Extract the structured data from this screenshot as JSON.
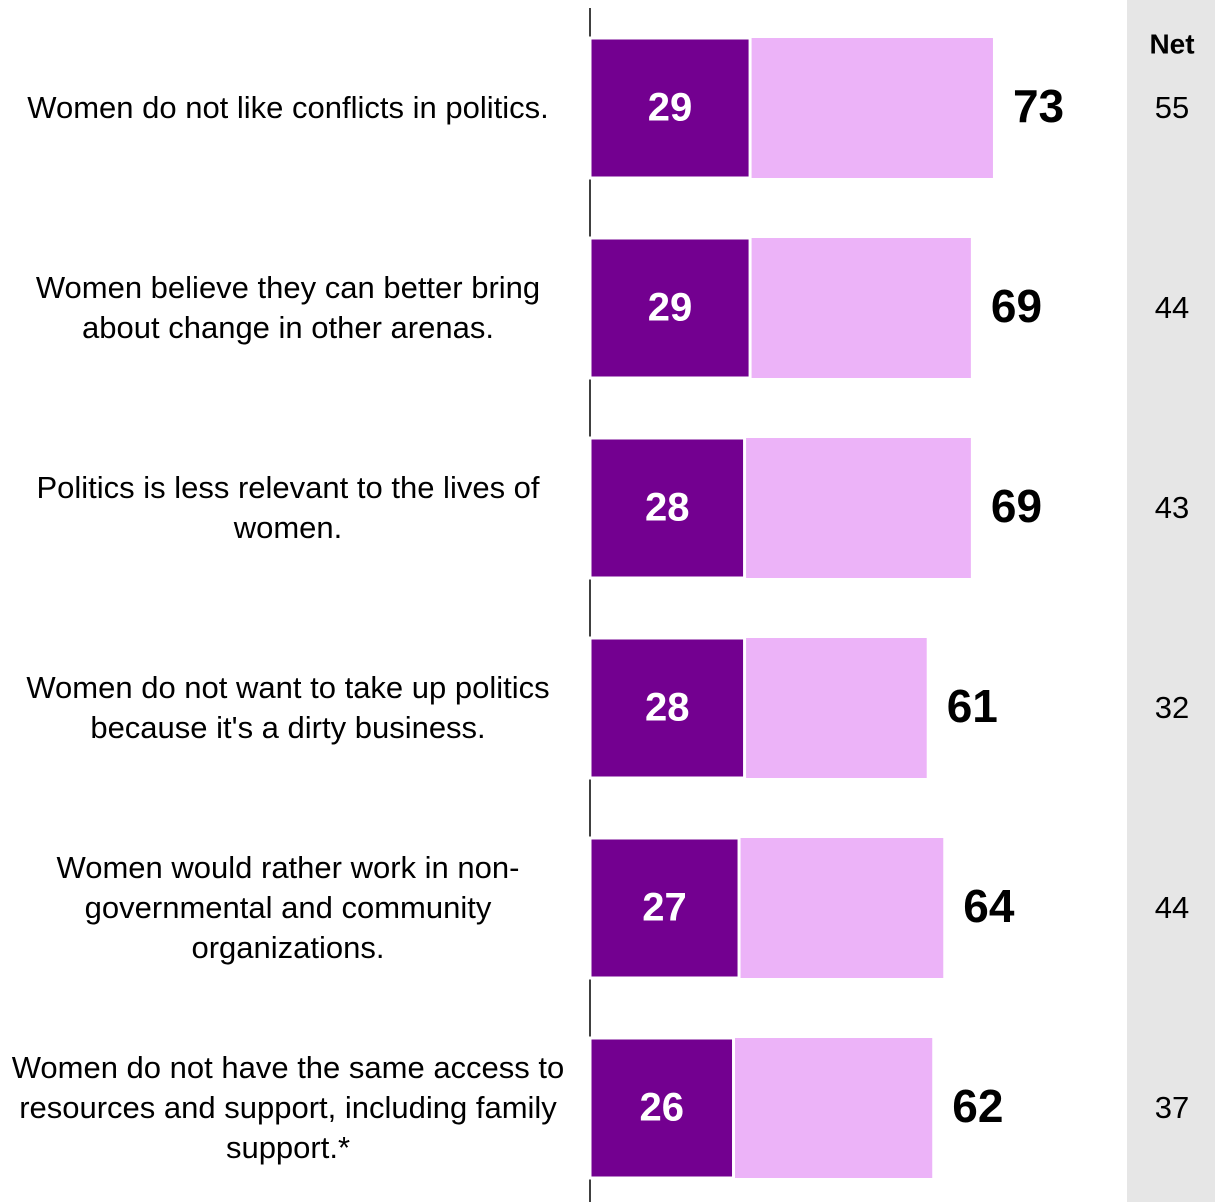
{
  "chart_data": {
    "type": "bar",
    "categories": [
      "Women do not like conflicts in politics.",
      "Women believe they can better bring about change in other arenas.",
      "Politics is less relevant to the lives of women.",
      "Women do not want to take up politics because it's a dirty business.",
      "Women would rather work in non-governmental and community organizations.",
      "Women do not have the same access to resources and support, including family support.*"
    ],
    "series": [
      {
        "color": "#ecb3f8",
        "values": [
          73,
          69,
          69,
          61,
          64,
          62
        ]
      },
      {
        "color": "#730090",
        "values": [
          29,
          29,
          28,
          28,
          27,
          26
        ]
      }
    ],
    "net": {
      "title": "Net",
      "values": [
        55,
        44,
        43,
        32,
        44,
        37
      ]
    },
    "xlim": [
      0,
      100
    ]
  }
}
